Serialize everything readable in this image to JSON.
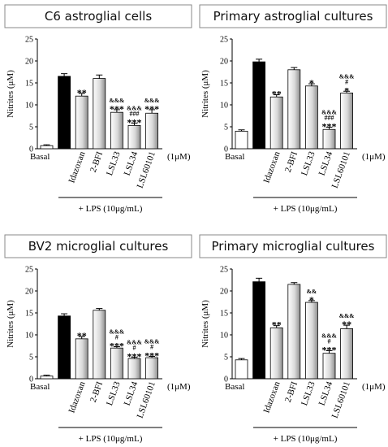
{
  "colors": {
    "basal_fill": "#ffffff",
    "lps_fill": "#000000",
    "treatment_gradient_light": "#ffffff",
    "treatment_gradient_dark": "#8f8f8f",
    "axis": "#000000",
    "title_border": "#8a8a8a"
  },
  "chart_data": [
    {
      "type": "bar",
      "title": "C6 astroglial cells",
      "ylabel": "Nitrites (μM)",
      "ylim": [
        0,
        25
      ],
      "yticks": [
        0,
        5,
        10,
        15,
        20,
        25
      ],
      "grid": false,
      "categories": [
        "Basal",
        "",
        "Idazoxan",
        "2-BFI",
        "LSL33",
        "LSL34",
        "LSL60101"
      ],
      "values": [
        0.7,
        16.5,
        12.0,
        16.0,
        8.3,
        5.3,
        8.1
      ],
      "errors": [
        0.2,
        0.6,
        0.6,
        0.8,
        0.6,
        0.5,
        0.8
      ],
      "bar_styles": [
        "white",
        "black",
        "gradient",
        "gradient",
        "gradient",
        "gradient",
        "gradient"
      ],
      "significance": [
        [],
        [],
        [
          "**"
        ],
        [],
        [
          "&&&",
          "***"
        ],
        [
          "&&&",
          "###",
          "***"
        ],
        [
          "&&&",
          "***"
        ]
      ],
      "group_label": "+ LPS (10μg/mL)",
      "dose_label": "(1μM)"
    },
    {
      "type": "bar",
      "title": "Primary astroglial cultures",
      "ylabel": "Nitrites (μM)",
      "ylim": [
        0,
        25
      ],
      "yticks": [
        0,
        5,
        10,
        15,
        20,
        25
      ],
      "grid": false,
      "categories": [
        "Basal",
        "",
        "Idazoxan",
        "2-BFI",
        "LSL33",
        "LSL34",
        "LSL60101"
      ],
      "values": [
        4.0,
        19.8,
        11.8,
        18.0,
        14.3,
        4.4,
        12.7
      ],
      "errors": [
        0.3,
        0.6,
        0.5,
        0.5,
        0.5,
        0.5,
        0.4
      ],
      "bar_styles": [
        "white",
        "black",
        "gradient",
        "gradient",
        "gradient",
        "gradient",
        "gradient"
      ],
      "significance": [
        [],
        [],
        [
          "**"
        ],
        [],
        [
          "*"
        ],
        [
          "&&&",
          "###",
          "***"
        ],
        [
          "&&&",
          "#",
          "*"
        ]
      ],
      "group_label": "+ LPS (10μg/mL)",
      "dose_label": "(1μM)"
    },
    {
      "type": "bar",
      "title": "BV2 microglial cultures",
      "ylabel": "Nitrites (μM)",
      "ylim": [
        0,
        25
      ],
      "yticks": [
        0,
        5,
        10,
        15,
        20,
        25
      ],
      "grid": false,
      "categories": [
        "Basal",
        "",
        "Idazoxan",
        "2-BFI",
        "LSL33",
        "LSL34",
        "LSL60101"
      ],
      "values": [
        0.6,
        14.3,
        9.1,
        15.6,
        7.0,
        4.6,
        4.8
      ],
      "errors": [
        0.2,
        0.5,
        0.5,
        0.4,
        0.3,
        0.3,
        0.3
      ],
      "bar_styles": [
        "white",
        "black",
        "gradient",
        "gradient",
        "gradient",
        "gradient",
        "gradient"
      ],
      "significance": [
        [],
        [],
        [
          "**"
        ],
        [],
        [
          "&&&",
          "#",
          "***"
        ],
        [
          "&&&",
          "#",
          "***"
        ],
        [
          "&&&",
          "#",
          "***"
        ]
      ],
      "group_label": "+ LPS (10μg/mL)",
      "dose_label": "(1μM)"
    },
    {
      "type": "bar",
      "title": "Primary microglial cultures",
      "ylabel": "Nitrites (μM)",
      "ylim": [
        0,
        25
      ],
      "yticks": [
        0,
        5,
        10,
        15,
        20,
        25
      ],
      "grid": false,
      "categories": [
        "Basal",
        "",
        "Idazoxan",
        "2-BFI",
        "LSL33",
        "LSL34",
        "LSL60101"
      ],
      "values": [
        4.3,
        22.1,
        11.6,
        21.5,
        17.4,
        5.8,
        11.4
      ],
      "errors": [
        0.3,
        0.8,
        0.5,
        0.4,
        0.4,
        0.6,
        0.8
      ],
      "bar_styles": [
        "white",
        "black",
        "gradient",
        "gradient",
        "gradient",
        "gradient",
        "gradient"
      ],
      "significance": [
        [],
        [],
        [
          "**"
        ],
        [],
        [
          "&&",
          "*"
        ],
        [
          "&&&",
          "#",
          "***"
        ],
        [
          "&&&",
          "**"
        ]
      ],
      "group_label": "+ LPS (10μg/mL)",
      "dose_label": "(1μM)"
    }
  ]
}
